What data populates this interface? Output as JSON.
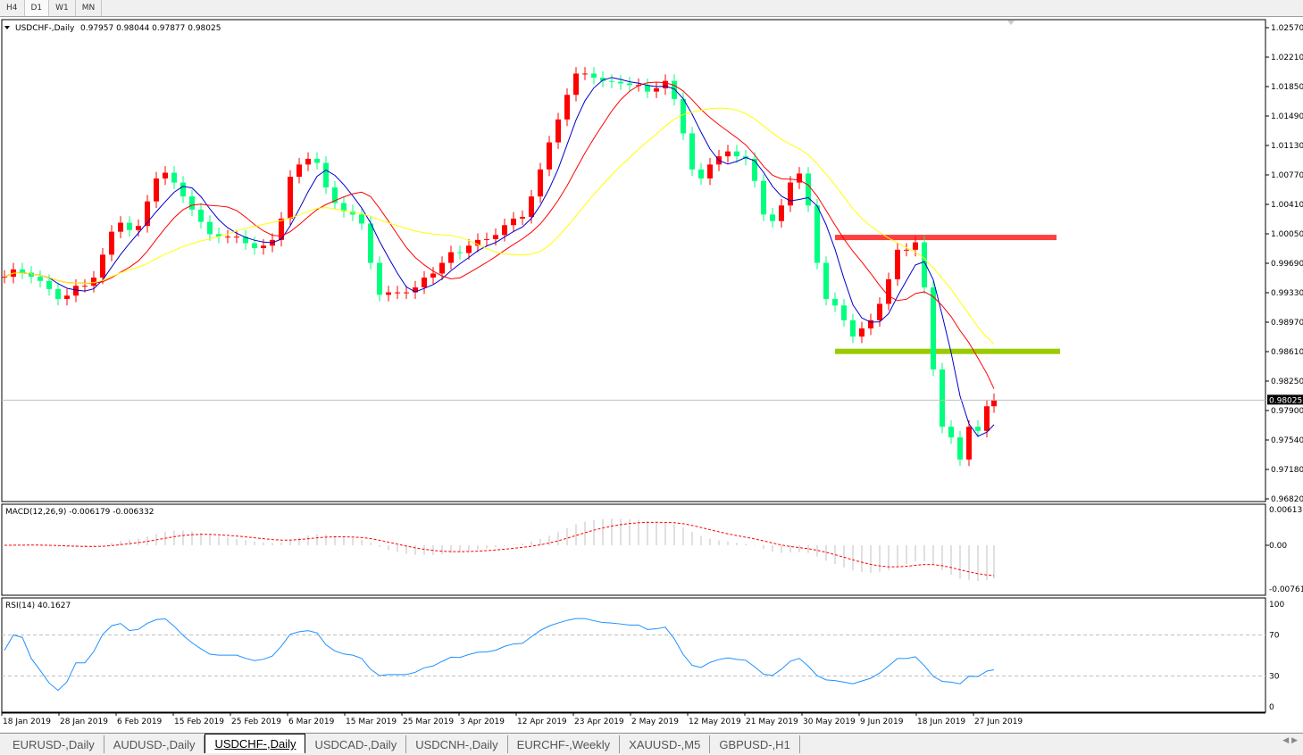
{
  "timeframes": [
    "H4",
    "D1",
    "W1",
    "MN"
  ],
  "active_timeframe": "D1",
  "symbol_label": "USDCHF-,Daily",
  "ohlc_readout": "0.97957 0.98044 0.97877 0.98025",
  "current_price": "0.98025",
  "price_axis": [
    "1.02570",
    "1.02210",
    "1.01850",
    "1.01490",
    "1.01130",
    "1.00770",
    "1.00410",
    "1.00050",
    "0.99690",
    "0.99330",
    "0.98970",
    "0.98610",
    "0.98250",
    "0.97900",
    "0.97540",
    "0.97180",
    "0.96820"
  ],
  "macd": {
    "label": "MACD(12,26,9) -0.006179 -0.006332",
    "axis": [
      "0.00613",
      "0.00",
      "-0.007612"
    ]
  },
  "rsi": {
    "label": "RSI(14) 40.1627",
    "axis": [
      "100",
      "70",
      "30",
      "0"
    ],
    "levels": [
      70,
      30
    ]
  },
  "date_labels": [
    "18 Jan 2019",
    "28 Jan 2019",
    "6 Feb 2019",
    "15 Feb 2019",
    "25 Feb 2019",
    "6 Mar 2019",
    "15 Mar 2019",
    "25 Mar 2019",
    "3 Apr 2019",
    "12 Apr 2019",
    "23 Apr 2019",
    "2 May 2019",
    "12 May 2019",
    "21 May 2019",
    "30 May 2019",
    "9 Jun 2019",
    "18 Jun 2019",
    "27 Jun 2019"
  ],
  "tabs": [
    "EURUSD-,Daily",
    "AUDUSD-,Daily",
    "USDCHF-,Daily",
    "USDCAD-,Daily",
    "USDCNH-,Daily",
    "EURCHF-,Weekly",
    "XAUUSD-,M5",
    "GBPUSD-,H1"
  ],
  "active_tab": "USDCHF-,Daily",
  "colors": {
    "bull_candle": "#ff0000",
    "bear_candle": "#00ff7f",
    "ma_fast": "#0000cc",
    "ma_mid": "#ff0000",
    "ma_slow": "#ffff00",
    "resistance": "#ff4040",
    "support": "#99cc00",
    "rsi_line": "#1e90ff",
    "macd_signal": "#ff0000",
    "macd_hist": "#c0c0c0"
  },
  "horizontal_levels": [
    {
      "type": "resistance",
      "price": 1.0001
    },
    {
      "type": "support",
      "price": 0.9862
    }
  ],
  "chart_data": {
    "type": "candlestick",
    "ylim": [
      0.9682,
      1.0257
    ],
    "close": [
      0.9953,
      0.9962,
      0.9958,
      0.9953,
      0.9948,
      0.9938,
      0.9926,
      0.993,
      0.9942,
      0.9942,
      0.9952,
      0.998,
      1.0008,
      1.0019,
      1.001,
      1.0015,
      1.0045,
      1.0073,
      1.008,
      1.0068,
      1.0051,
      1.0035,
      1.002,
      1.0005,
      1.0002,
      1.0002,
      1.0002,
      0.9994,
      0.9988,
      0.9991,
      0.9998,
      1.0024,
      1.0075,
      1.009,
      1.0097,
      1.0092,
      1.0062,
      1.0043,
      1.0033,
      1.0029,
      1.0018,
      0.997,
      0.9931,
      0.9934,
      0.9934,
      0.9934,
      0.994,
      0.9952,
      0.9957,
      0.997,
      0.9983,
      0.9982,
      0.9991,
      0.9998,
      0.9999,
      1.0004,
      1.0016,
      1.0024,
      1.0026,
      1.0051,
      1.0084,
      1.0117,
      1.0145,
      1.0175,
      1.0201,
      1.0201,
      1.0196,
      1.0192,
      1.0191,
      1.0189,
      1.0187,
      1.0187,
      1.0179,
      1.0183,
      1.0192,
      1.017,
      1.0128,
      1.0084,
      1.0073,
      1.009,
      1.01,
      1.0106,
      1.01,
      1.0097,
      1.007,
      1.0029,
      1.0021,
      1.004,
      1.0068,
      1.0079,
      1.004,
      0.997,
      0.9926,
      0.9918,
      0.99,
      0.988,
      0.989,
      0.99,
      0.992,
      0.995,
      0.9986,
      0.9986,
      0.9995,
      0.994,
      0.984,
      0.977,
      0.9757,
      0.973,
      0.977,
      0.9765,
      0.9795,
      0.98025
    ]
  }
}
